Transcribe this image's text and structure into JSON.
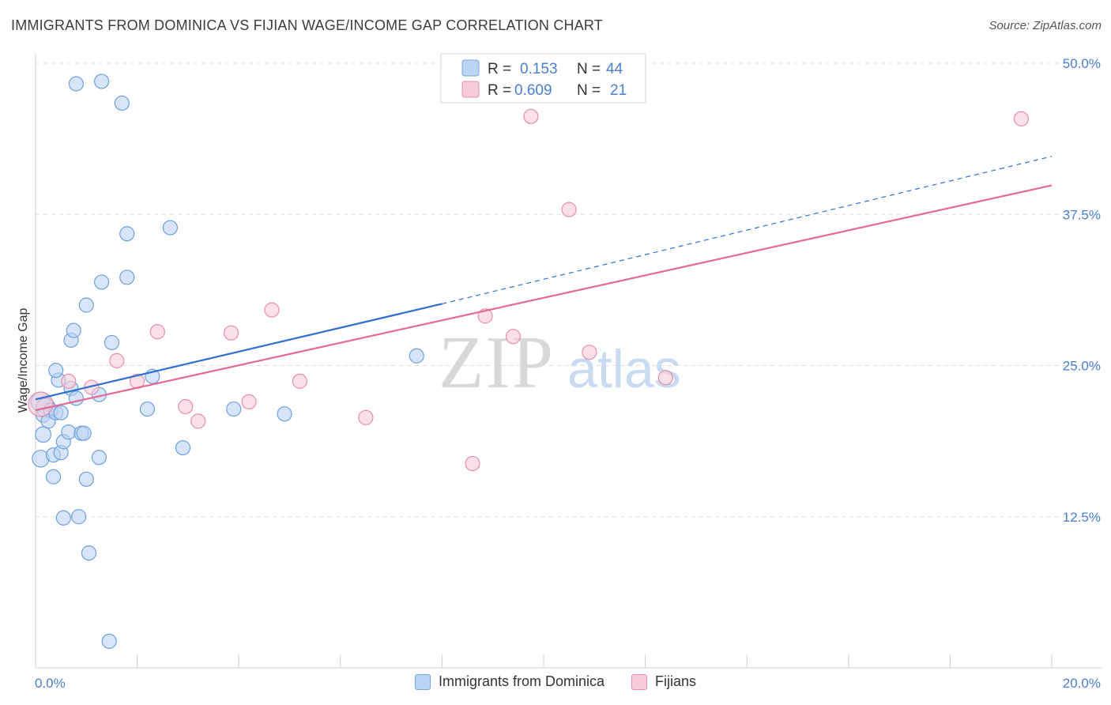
{
  "title": "IMMIGRANTS FROM DOMINICA VS FIJIAN WAGE/INCOME GAP CORRELATION CHART",
  "source": "Source: ZipAtlas.com",
  "watermark": {
    "zip": "ZIP",
    "atlas": "atlas"
  },
  "chart_data": {
    "type": "scatter",
    "xlabel": "",
    "ylabel": "Wage/Income Gap",
    "xlim": [
      0,
      20
    ],
    "ylim": [
      0,
      50
    ],
    "x_tick_labels": [
      "0.0%",
      "20.0%"
    ],
    "y_ticks": [
      12.5,
      25.0,
      37.5,
      50.0
    ],
    "y_tick_labels": [
      "12.5%",
      "25.0%",
      "37.5%",
      "50.0%"
    ],
    "grid": true,
    "legend_top": [
      {
        "r_label": "R =",
        "r_value": "0.153",
        "n_label": "N =",
        "n_value": "44",
        "color": "#4a7fd0"
      },
      {
        "r_label": "R =",
        "r_value": "0.609",
        "n_label": "N =",
        "n_value": "21",
        "color": "#4a7fd0"
      }
    ],
    "series": [
      {
        "name": "Immigrants from Dominica",
        "fill": "#bcd4f3",
        "stroke": "#6f9fdc",
        "line_color": "#2f6fd0",
        "trend_solid": [
          [
            0,
            22.2
          ],
          [
            8,
            30.1
          ]
        ],
        "trend_dashed": [
          [
            8,
            30.1
          ],
          [
            20,
            42.3
          ]
        ],
        "points": [
          [
            0.1,
            22.0,
            14
          ],
          [
            0.2,
            21.5,
            14
          ],
          [
            0.15,
            20.9,
            10
          ],
          [
            0.3,
            21.3,
            10
          ],
          [
            0.25,
            20.4,
            10
          ],
          [
            0.4,
            21.1,
            10
          ],
          [
            0.15,
            19.3,
            11
          ],
          [
            0.1,
            17.3,
            12
          ],
          [
            0.35,
            17.6,
            10
          ],
          [
            0.5,
            17.8,
            10
          ],
          [
            0.55,
            18.7,
            10
          ],
          [
            0.65,
            19.5,
            10
          ],
          [
            0.9,
            19.4,
            10
          ],
          [
            0.95,
            19.4,
            10
          ],
          [
            0.7,
            23.1,
            10
          ],
          [
            0.45,
            23.8,
            10
          ],
          [
            0.4,
            24.6,
            10
          ],
          [
            0.8,
            22.3,
            10
          ],
          [
            1.25,
            22.6,
            10
          ],
          [
            0.7,
            27.1,
            10
          ],
          [
            0.75,
            27.9,
            10
          ],
          [
            1.5,
            26.9,
            10
          ],
          [
            1.0,
            30.0,
            10
          ],
          [
            1.3,
            31.9,
            10
          ],
          [
            1.8,
            32.3,
            10
          ],
          [
            1.8,
            35.9,
            10
          ],
          [
            2.65,
            36.4,
            10
          ],
          [
            0.35,
            15.8,
            10
          ],
          [
            1.0,
            15.6,
            10
          ],
          [
            0.55,
            12.4,
            10
          ],
          [
            0.85,
            12.5,
            10
          ],
          [
            1.05,
            9.5,
            10
          ],
          [
            1.45,
            2.2,
            10
          ],
          [
            0.8,
            48.3,
            10
          ],
          [
            1.3,
            48.5,
            10
          ],
          [
            1.7,
            46.7,
            10
          ],
          [
            1.25,
            17.4,
            10
          ],
          [
            2.2,
            21.4,
            10
          ],
          [
            2.3,
            24.1,
            10
          ],
          [
            2.9,
            18.2,
            10
          ],
          [
            3.9,
            21.4,
            10
          ],
          [
            4.9,
            21.0,
            10
          ],
          [
            7.5,
            25.8,
            10
          ],
          [
            0.5,
            21.1,
            10
          ]
        ]
      },
      {
        "name": "Fijians",
        "fill": "#f9ccd9",
        "stroke": "#e48eaa",
        "line_color": "#e46a93",
        "trend_solid": [
          [
            0,
            21.3
          ],
          [
            20,
            39.9
          ]
        ],
        "points": [
          [
            0.1,
            21.8,
            18
          ],
          [
            0.65,
            23.7,
            10
          ],
          [
            1.1,
            23.2,
            10
          ],
          [
            1.6,
            25.4,
            10
          ],
          [
            2.0,
            23.7,
            10
          ],
          [
            2.4,
            27.8,
            10
          ],
          [
            2.95,
            21.6,
            10
          ],
          [
            3.2,
            20.4,
            10
          ],
          [
            3.85,
            27.7,
            10
          ],
          [
            4.2,
            22.0,
            10
          ],
          [
            4.65,
            29.6,
            10
          ],
          [
            5.2,
            23.7,
            10
          ],
          [
            6.5,
            20.7,
            10
          ],
          [
            8.6,
            16.9,
            10
          ],
          [
            8.85,
            29.1,
            10
          ],
          [
            9.4,
            27.4,
            10
          ],
          [
            9.75,
            45.6,
            10
          ],
          [
            10.5,
            37.9,
            10
          ],
          [
            10.9,
            26.1,
            10
          ],
          [
            12.4,
            24.0,
            10
          ],
          [
            19.4,
            45.4,
            10
          ]
        ]
      }
    ]
  }
}
